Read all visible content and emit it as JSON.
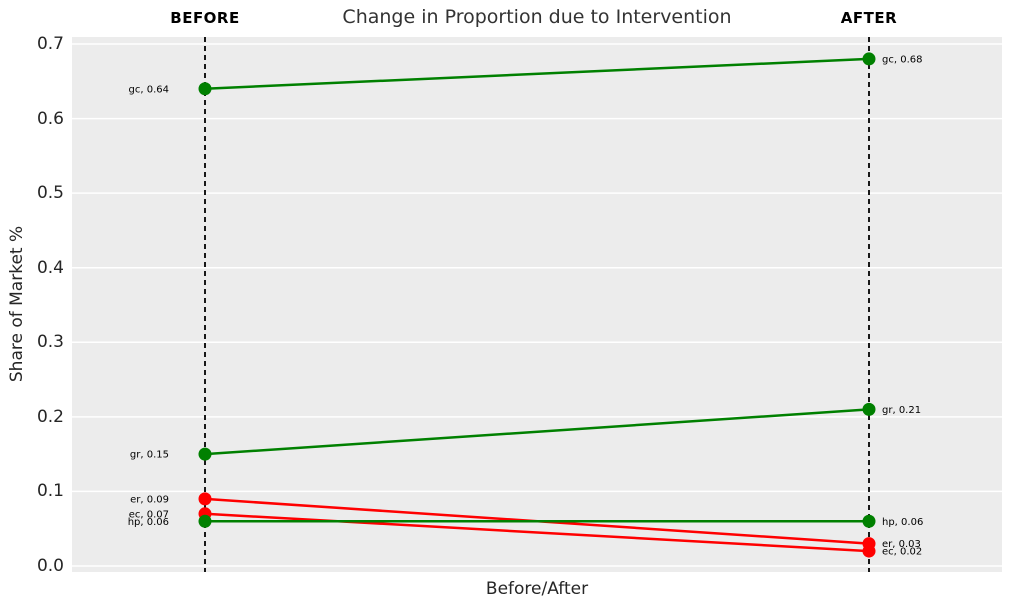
{
  "colors": {
    "figure_bg": "#ffffff",
    "plot_bg": "#ececec",
    "grid": "#ffffff",
    "dashed_line": "#000000",
    "increase": "#008000",
    "decrease": "#ff0000",
    "title_text": "#333333",
    "tick_text": "#262626",
    "annotation_text": "#000000"
  },
  "chart_data": {
    "type": "line",
    "variant": "slope-chart",
    "title": "Change in Proportion due to Intervention",
    "xlabel": "Before/After",
    "ylabel": "Share of Market %",
    "x_categories": [
      "BEFORE",
      "AFTER"
    ],
    "ylim": [
      0.0,
      0.7
    ],
    "y_ticks": [
      0.0,
      0.1,
      0.2,
      0.3,
      0.4,
      0.5,
      0.6,
      0.7
    ],
    "grid": true,
    "legend": "none",
    "column_marker": "vertical-dashed-line",
    "series": [
      {
        "name": "gc",
        "before": 0.64,
        "after": 0.68,
        "color": "#008000",
        "trend": "increase",
        "labels": {
          "before": "gc, 0.64",
          "after": "gc, 0.68"
        }
      },
      {
        "name": "gr",
        "before": 0.15,
        "after": 0.21,
        "color": "#008000",
        "trend": "increase",
        "labels": {
          "before": "gr, 0.15",
          "after": "gr, 0.21"
        }
      },
      {
        "name": "er",
        "before": 0.09,
        "after": 0.03,
        "color": "#ff0000",
        "trend": "decrease",
        "labels": {
          "before": "er, 0.09",
          "after": "er, 0.03"
        }
      },
      {
        "name": "ec",
        "before": 0.07,
        "after": 0.02,
        "color": "#ff0000",
        "trend": "decrease",
        "labels": {
          "before": "ec, 0.07",
          "after": "ec, 0.02"
        }
      },
      {
        "name": "hp",
        "before": 0.06,
        "after": 0.06,
        "color": "#008000",
        "trend": "flat",
        "labels": {
          "before": "hp, 0.06",
          "after": "hp, 0.06"
        }
      }
    ]
  }
}
